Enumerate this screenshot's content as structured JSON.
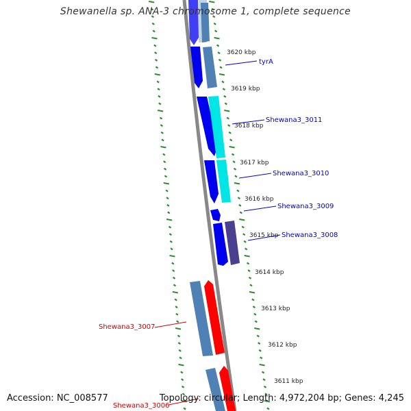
{
  "title": "Shewanella sp. ANA-3 chromosome 1, complete sequence",
  "footer": {
    "accession": "Accession: NC_008577",
    "summary": "Topology: circular; Length: 4,972,204 bp; Genes: 4,245"
  },
  "ticks": [
    "3620 kbp",
    "3619 kbp",
    "3618 kbp",
    "3617 kbp",
    "3616 kbp",
    "3615 kbp",
    "3614 kbp",
    "3613 kbp",
    "3612 kbp",
    "3611 kbp"
  ],
  "gene_labels": [
    {
      "text": "tyrA",
      "color": "#0000cc"
    },
    {
      "text": "Shewana3_3011",
      "color": "#0000cc"
    },
    {
      "text": "Shewana3_3010",
      "color": "#0000cc"
    },
    {
      "text": "Shewana3_3009",
      "color": "#0000cc"
    },
    {
      "text": "Shewana3_3008",
      "color": "#0000cc"
    },
    {
      "text": "Shewana3_3007",
      "color": "#cc0000"
    },
    {
      "text": "Shewana3_3006",
      "color": "#cc0000"
    }
  ],
  "colors": {
    "cds_forward_blue": "#0000ee",
    "cds_reverse_red": "#ff0000",
    "orthologs_steelblue": "#4f81b5",
    "cyan_feature": "#00e5e5",
    "purple_feature": "#4b3f8f",
    "backbone": "#888888",
    "tick_marks": "#2e8b2e"
  }
}
